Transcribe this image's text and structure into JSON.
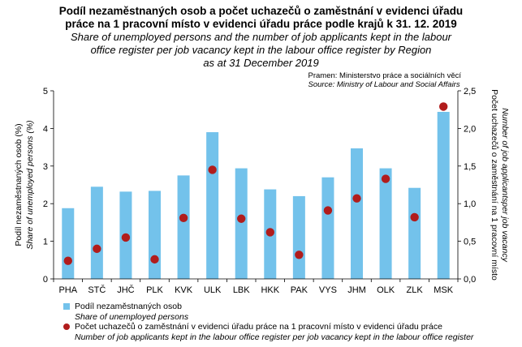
{
  "header": {
    "title_cz_line1": "Podíl nezaměstnaných osob  a počet uchazečů o zaměstnání v evidenci úřadu",
    "title_cz_line2": "práce na 1 pracovní místo v evidenci úřadu práce podle krajů k 31. 12. 2019",
    "title_en_line1": "Share of unemployed persons and the number of job applicants kept in the labour",
    "title_en_line2": "office register per job vacancy kept in the labour office register by Region",
    "title_en_line3": "as at 31 December 2019"
  },
  "source": {
    "cz": "Pramen: Ministerstvo práce a sociálních věcí",
    "en": "Source: Ministry of Labour and Social Affairs"
  },
  "legend": {
    "bar_cz": "Podíl nezaměstnaných osob",
    "bar_en": "Share of unemployed persons",
    "dot_cz": "Počet uchazečů o zaměstnání v evidenci úřadu práce na 1 pracovní místo v evidenci úřadu práce",
    "dot_en": "Number of job applicants kept in the labour office register per job vacancy kept in the labour office register"
  },
  "chart_data": {
    "type": "bar",
    "categories": [
      "PHA",
      "STČ",
      "JHČ",
      "PLK",
      "KVK",
      "ULK",
      "LBK",
      "HKK",
      "PAK",
      "VYS",
      "JHM",
      "OLK",
      "ZLK",
      "MSK"
    ],
    "series": [
      {
        "name": "Podíl nezaměstnaných osob",
        "type": "bar",
        "axis": "left",
        "color": "#73c2eb",
        "values": [
          1.88,
          2.45,
          2.32,
          2.34,
          2.75,
          3.9,
          2.94,
          2.38,
          2.2,
          2.7,
          3.47,
          2.94,
          2.42,
          4.44
        ]
      },
      {
        "name": "Počet uchazečů o zaměstnání v evidenci úřadu práce na 1 pracovní místo",
        "type": "scatter",
        "axis": "right",
        "color": "#b11c1c",
        "values": [
          0.24,
          0.4,
          0.55,
          0.26,
          0.81,
          1.45,
          0.8,
          0.62,
          0.32,
          0.91,
          1.07,
          1.33,
          0.82,
          2.29
        ]
      }
    ],
    "ylabel_left_cz": "Podíl nezaměstnaných osob (%)",
    "ylabel_left_en": "Share of unemployed persons (%)",
    "ylabel_right_cz": "Počet uchazečů o zaměstnání na 1 pracovní  místo",
    "ylabel_right_en": "Number of job applicantsper job vacancy",
    "ylim_left": [
      0,
      5
    ],
    "ylim_right": [
      0,
      2.5
    ],
    "yticks_left": [
      "0",
      "1",
      "2",
      "3",
      "4",
      "5"
    ],
    "yticks_right": [
      "0,0",
      "0,5",
      "1,0",
      "1,5",
      "2,0",
      "2,5"
    ],
    "grid": false
  }
}
